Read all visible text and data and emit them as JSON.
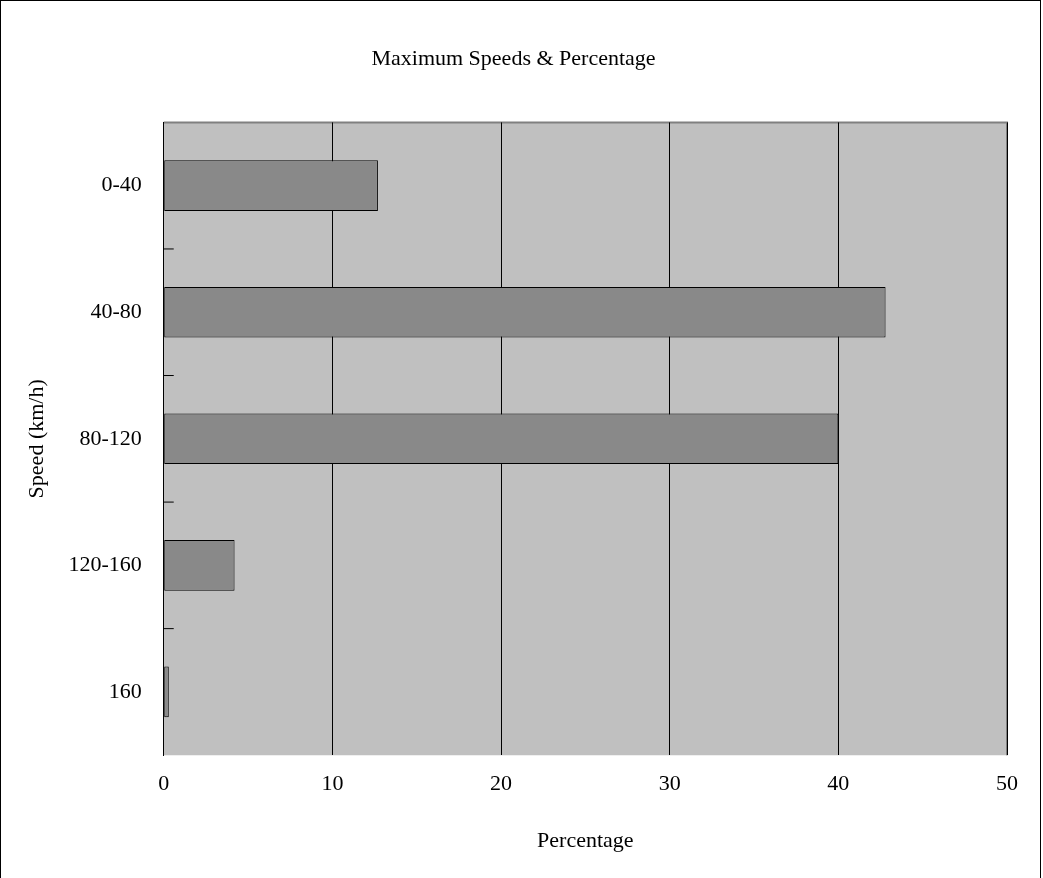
{
  "chart_data": {
    "type": "bar",
    "orientation": "horizontal",
    "title": "Maximum Speeds & Percentage",
    "xlabel": "Percentage",
    "ylabel": "Speed (km/h)",
    "categories": [
      "0-40",
      "40-80",
      "80-120",
      "120-160",
      "160"
    ],
    "values": [
      12.7,
      42.8,
      40.0,
      4.2,
      0.3
    ],
    "color": "#898989",
    "xlim": [
      0,
      50
    ],
    "xticks": [
      0,
      10,
      20,
      30,
      40,
      50
    ],
    "grid": "x",
    "legend": false
  }
}
